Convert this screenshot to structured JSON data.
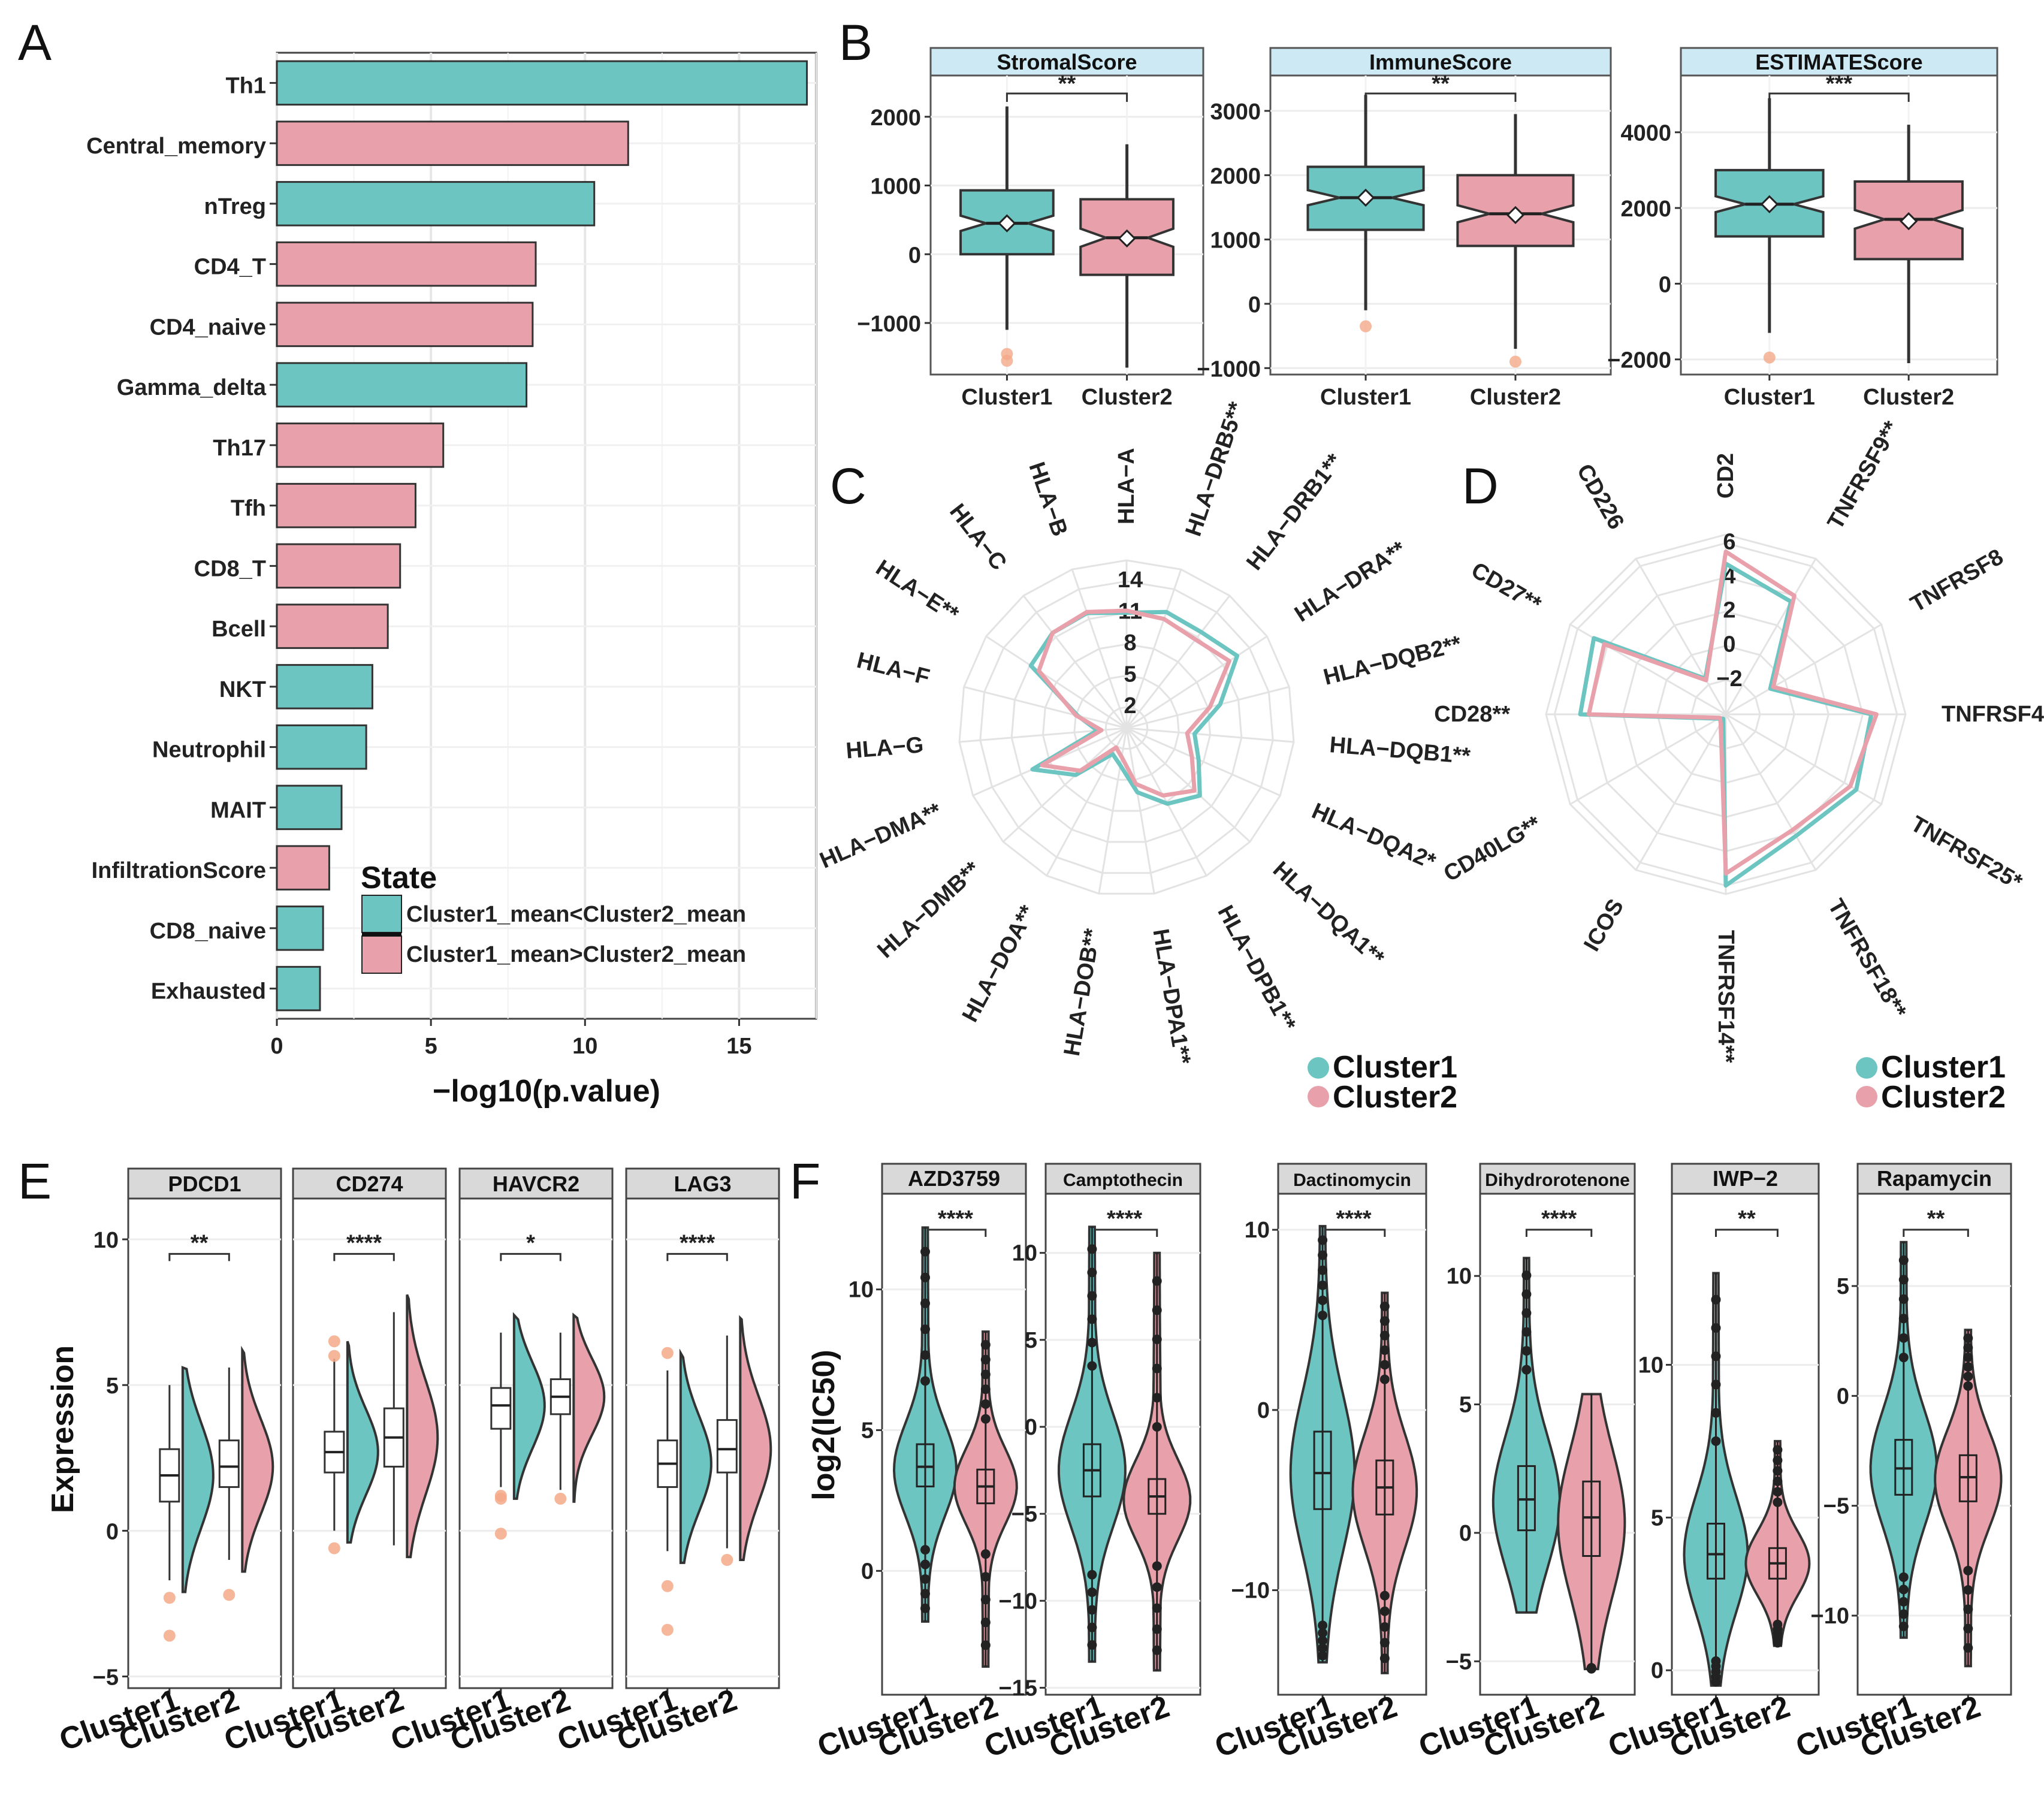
{
  "colors": {
    "cluster1": "#6cc5c1",
    "cluster2": "#e8a1ab",
    "strip_b": "#cde9f3",
    "strip_ef": "#d9d9d9",
    "outlier": "#f4a988",
    "sig": "#e8891e"
  },
  "panels": {
    "A": "A",
    "B": "B",
    "C": "C",
    "D": "D",
    "E": "E",
    "F": "F"
  },
  "chart_data": [
    {
      "panel": "A",
      "type": "bar",
      "orientation": "horizontal",
      "categories": [
        "Th1",
        "Central_memory",
        "nTreg",
        "CD4_T",
        "CD4_naive",
        "Gamma_delta",
        "Th17",
        "Tfh",
        "CD8_T",
        "Bcell",
        "NKT",
        "Neutrophil",
        "MAIT",
        "InfiltrationScore",
        "CD8_naive",
        "Exhausted"
      ],
      "values": [
        17.2,
        11.4,
        10.3,
        8.4,
        8.3,
        8.1,
        5.4,
        4.5,
        4.0,
        3.6,
        3.1,
        2.9,
        2.1,
        1.7,
        1.5,
        1.4
      ],
      "state": [
        "lt",
        "gt",
        "lt",
        "gt",
        "gt",
        "lt",
        "gt",
        "gt",
        "gt",
        "gt",
        "lt",
        "lt",
        "lt",
        "gt",
        "lt",
        "lt"
      ],
      "xlabel": "−log10(p.value)",
      "xticks": [
        "0",
        "5",
        "10",
        "15"
      ],
      "xlim": [
        0,
        17.5
      ],
      "legend": {
        "title": "State",
        "lt": "Cluster1_mean<Cluster2_mean",
        "gt": "Cluster1_mean>Cluster2_mean"
      }
    },
    {
      "panel": "B",
      "type": "box",
      "subplots": [
        {
          "title": "StromalScore",
          "sig": "**",
          "ylim": [
            -1750,
            2600
          ],
          "yticks": [
            "2000",
            "1000",
            "0",
            "−1000"
          ],
          "ytick_values": [
            2000,
            1000,
            0,
            -1000
          ],
          "groups": [
            {
              "name": "Cluster1",
              "q1": 0,
              "med": 450,
              "q3": 930,
              "lo": -1100,
              "hi": 2150,
              "mean": 450,
              "out": [
                -1450,
                -1550
              ]
            },
            {
              "name": "Cluster2",
              "q1": -300,
              "med": 240,
              "q3": 800,
              "lo": -1650,
              "hi": 1600,
              "mean": 230,
              "out": []
            }
          ]
        },
        {
          "title": "ImmuneScore",
          "sig": "**",
          "ylim": [
            -1100,
            3550
          ],
          "yticks": [
            "3000",
            "2000",
            "1000",
            "0",
            "−1000"
          ],
          "ytick_values": [
            3000,
            2000,
            1000,
            0,
            -1000
          ],
          "groups": [
            {
              "name": "Cluster1",
              "q1": 1150,
              "med": 1650,
              "q3": 2130,
              "lo": -100,
              "hi": 3250,
              "mean": 1650,
              "out": [
                -350
              ]
            },
            {
              "name": "Cluster2",
              "q1": 900,
              "med": 1400,
              "q3": 2000,
              "lo": -700,
              "hi": 2950,
              "mean": 1380,
              "out": [
                -900
              ]
            }
          ]
        },
        {
          "title": "ESTIMATEScore",
          "sig": "***",
          "ylim": [
            -2400,
            5500
          ],
          "yticks": [
            "4000",
            "2000",
            "0",
            "−2000"
          ],
          "ytick_values": [
            4000,
            2000,
            0,
            -2000
          ],
          "groups": [
            {
              "name": "Cluster1",
              "q1": 1250,
              "med": 2100,
              "q3": 3000,
              "lo": -1300,
              "hi": 4900,
              "mean": 2100,
              "out": [
                -1950
              ]
            },
            {
              "name": "Cluster2",
              "q1": 650,
              "med": 1700,
              "q3": 2700,
              "lo": -2100,
              "hi": 4200,
              "mean": 1650,
              "out": []
            }
          ]
        }
      ],
      "xcategories": [
        "Cluster1",
        "Cluster2"
      ]
    },
    {
      "panel": "C",
      "type": "radar",
      "axes": [
        "HLA−A",
        "HLA−DRB5**",
        "HLA−DRB1**",
        "HLA−DRA**",
        "HLA−DQB2**",
        "HLA−DQB1**",
        "HLA−DQA2*",
        "HLA−DQA1**",
        "HLA−DPB1**",
        "HLA−DPA1**",
        "HLA−DOB**",
        "HLA−DOA**",
        "HLA−DMB**",
        "HLA−DMA**",
        "HLA−G",
        "HLA−F",
        "HLA−E**",
        "HLA−C",
        "HLA−B"
      ],
      "rticks": [
        "2",
        "5",
        "8",
        "11",
        "14"
      ],
      "rticks_values": [
        2,
        5,
        8,
        11,
        14
      ],
      "rmin": 0,
      "rmax": 16,
      "series": [
        {
          "name": "Cluster1",
          "values": [
            11,
            11.7,
            11.6,
            12.6,
            9.2,
            6.5,
            7.5,
            9.5,
            8.2,
            6.2,
            3.6,
            2.8,
            6.6,
            9.8,
            2.8,
            4.8,
            10.9,
            11.5,
            11.6
          ]
        },
        {
          "name": "Cluster2",
          "values": [
            11.2,
            11.0,
            10.7,
            11.7,
            8.2,
            5.8,
            6.8,
            8.8,
            7.3,
            5.4,
            2.8,
            2.1,
            6.0,
            8.8,
            2.4,
            5.0,
            10.0,
            11.5,
            11.7
          ]
        }
      ]
    },
    {
      "panel": "D",
      "type": "radar",
      "axes": [
        "CD2",
        "TNFRSF9**",
        "TNFRSF8",
        "TNFRSF4",
        "TNFRSF25*",
        "TNFRSF18**",
        "TNFRSF14**",
        "ICOS",
        "CD40LG**",
        "CD28**",
        "CD27**",
        "CD226"
      ],
      "rticks": [
        "−2",
        "0",
        "2",
        "4",
        "6"
      ],
      "rticks_values": [
        -2,
        0,
        2,
        4,
        6
      ],
      "rmin": -4,
      "rmax": 6.5,
      "series": [
        {
          "name": "Cluster1",
          "values": [
            4.8,
            3.6,
            -1.0,
            4.5,
            4.8,
            4.2,
            6.0,
            -3.7,
            -3.5,
            4.5,
            4.9,
            -1.6
          ]
        },
        {
          "name": "Cluster2",
          "values": [
            5.5,
            4.0,
            -0.8,
            4.8,
            4.4,
            3.8,
            5.3,
            -3.4,
            -3.6,
            4.0,
            4.2,
            -1.7
          ]
        }
      ]
    },
    {
      "panel": "E",
      "type": "raincloud",
      "ylabel": "Expression",
      "ylim": [
        -5.4,
        11.4
      ],
      "yticks": [
        "10",
        "5",
        "0",
        "−5"
      ],
      "ytick_values": [
        10,
        5,
        0,
        -5
      ],
      "xcategories": [
        "Cluster1",
        "Cluster2"
      ],
      "subplots": [
        {
          "title": "PDCD1",
          "sig": "**",
          "groups": [
            {
              "q1": 1.0,
              "med": 1.9,
              "q3": 2.8,
              "lo": -1.7,
              "hi": 5.0,
              "out": [
                -2.3,
                -3.6
              ]
            },
            {
              "q1": 1.5,
              "med": 2.2,
              "q3": 3.1,
              "lo": -1.0,
              "hi": 5.6,
              "out": [
                -2.2
              ]
            }
          ]
        },
        {
          "title": "CD274",
          "sig": "****",
          "groups": [
            {
              "q1": 2.0,
              "med": 2.7,
              "q3": 3.4,
              "lo": 0.0,
              "hi": 5.9,
              "out": [
                6.5,
                6.0,
                -0.6
              ]
            },
            {
              "q1": 2.2,
              "med": 3.2,
              "q3": 4.2,
              "lo": -0.5,
              "hi": 7.5,
              "out": []
            }
          ]
        },
        {
          "title": "HAVCR2",
          "sig": "*",
          "groups": [
            {
              "q1": 3.5,
              "med": 4.3,
              "q3": 4.9,
              "lo": 1.5,
              "hi": 6.8,
              "out": [
                1.2,
                1.1,
                -0.1
              ]
            },
            {
              "q1": 4.0,
              "med": 4.6,
              "q3": 5.2,
              "lo": 1.4,
              "hi": 6.8,
              "out": [
                1.1
              ]
            }
          ]
        },
        {
          "title": "LAG3",
          "sig": "****",
          "groups": [
            {
              "q1": 1.5,
              "med": 2.3,
              "q3": 3.1,
              "lo": -0.7,
              "hi": 5.5,
              "out": [
                6.1,
                -1.9,
                -3.4
              ]
            },
            {
              "q1": 2.0,
              "med": 2.8,
              "q3": 3.8,
              "lo": -0.6,
              "hi": 6.7,
              "out": [
                -1.0
              ]
            }
          ]
        }
      ]
    },
    {
      "panel": "F",
      "type": "violin",
      "ylabel": "log2(IC50)",
      "xcategories": [
        "Cluster1",
        "Cluster2"
      ],
      "subplots": [
        {
          "title": "AZD3759",
          "sig": "****",
          "ylim": [
            -4.4,
            13.4
          ],
          "yticks": [
            "10",
            "5",
            "0"
          ],
          "ytick_values": [
            10,
            5,
            0
          ],
          "groups": [
            {
              "q1": 3.0,
              "med": 3.7,
              "q3": 4.5,
              "lo": -1.8,
              "hi": 12.2,
              "mode": 3.6
            },
            {
              "q1": 2.4,
              "med": 3.0,
              "q3": 3.6,
              "lo": -3.4,
              "hi": 8.5,
              "mode": 3.0
            }
          ]
        },
        {
          "title": "Camptothecin",
          "sig": "****",
          "ylim": [
            -15.4,
            13.4
          ],
          "yticks": [
            "10",
            "5",
            "0",
            "−5",
            "−10",
            "−15"
          ],
          "ytick_values": [
            10,
            5,
            0,
            -5,
            -10,
            -15
          ],
          "groups": [
            {
              "q1": -4.0,
              "med": -2.5,
              "q3": -1.0,
              "lo": -13.5,
              "hi": 11.5,
              "mode": -2.5
            },
            {
              "q1": -5.0,
              "med": -4.0,
              "q3": -3.0,
              "lo": -14.0,
              "hi": 10.0,
              "mode": -4.2
            }
          ]
        },
        {
          "title": "Dactinomycin",
          "sig": "****",
          "ylim": [
            -15.8,
            12.0
          ],
          "yticks": [
            "10",
            "0",
            "−10"
          ],
          "ytick_values": [
            10,
            0,
            -10
          ],
          "groups": [
            {
              "q1": -5.5,
              "med": -3.5,
              "q3": -1.2,
              "lo": -14.0,
              "hi": 10.2,
              "mode": -3.5
            },
            {
              "q1": -5.8,
              "med": -4.3,
              "q3": -2.8,
              "lo": -14.6,
              "hi": 6.5,
              "mode": -4.5
            }
          ]
        },
        {
          "title": "Dihydrorotenone",
          "sig": "****",
          "ylim": [
            -6.3,
            13.2
          ],
          "yticks": [
            "10",
            "5",
            "0",
            "−5"
          ],
          "ytick_values": [
            10,
            5,
            0,
            -5
          ],
          "groups": [
            {
              "q1": 0.1,
              "med": 1.3,
              "q3": 2.6,
              "lo": -3.1,
              "hi": 10.7,
              "mode": 1.2
            },
            {
              "q1": -0.9,
              "med": 0.6,
              "q3": 2.0,
              "lo": -5.3,
              "hi": 5.4,
              "mode": 0.4
            }
          ]
        },
        {
          "title": "IWP−2",
          "sig": "**",
          "ylim": [
            -0.8,
            15.6
          ],
          "yticks": [
            "10",
            "5",
            "0"
          ],
          "ytick_values": [
            10,
            5,
            0
          ],
          "groups": [
            {
              "q1": 3.0,
              "med": 3.8,
              "q3": 4.8,
              "lo": -0.5,
              "hi": 13.0,
              "mode": 3.8
            },
            {
              "q1": 3.0,
              "med": 3.5,
              "q3": 4.0,
              "lo": 0.8,
              "hi": 7.5,
              "mode": 3.5
            }
          ]
        },
        {
          "title": "Rapamycin",
          "sig": "**",
          "ylim": [
            -13.6,
            9.2
          ],
          "yticks": [
            "5",
            "0",
            "−5",
            "−10"
          ],
          "ytick_values": [
            5,
            0,
            -5,
            -10
          ],
          "groups": [
            {
              "q1": -4.5,
              "med": -3.3,
              "q3": -2.0,
              "lo": -11.0,
              "hi": 7.0,
              "mode": -3.3
            },
            {
              "q1": -4.8,
              "med": -3.7,
              "q3": -2.7,
              "lo": -12.3,
              "hi": 3.0,
              "mode": -3.8
            }
          ]
        }
      ]
    }
  ],
  "legend_cd": {
    "c1": "Cluster1",
    "c2": "Cluster2"
  }
}
